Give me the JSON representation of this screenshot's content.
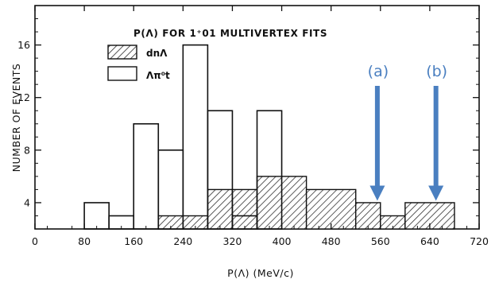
{
  "chart_data": {
    "type": "bar",
    "title": "P(Λ) FOR 1⁺01 MULTIVERTEX FITS",
    "xlabel": "P(Λ) (MeV/c)",
    "ylabel": "NUMBER OF EVENTS",
    "xlim": [
      0,
      720
    ],
    "ylim": [
      2,
      19
    ],
    "x_ticks": [
      0,
      80,
      160,
      240,
      320,
      400,
      480,
      560,
      640,
      720
    ],
    "y_ticks": [
      4,
      8,
      12,
      16
    ],
    "bin_width": 40,
    "grid": false,
    "legend_position": "top-left",
    "series": [
      {
        "name": "Λπ⁰t",
        "style": "open",
        "bins": [
          {
            "x0": 80,
            "x1": 120,
            "value": 4
          },
          {
            "x0": 120,
            "x1": 160,
            "value": 3
          },
          {
            "x0": 160,
            "x1": 200,
            "value": 10
          },
          {
            "x0": 200,
            "x1": 240,
            "value": 8
          },
          {
            "x0": 240,
            "x1": 280,
            "value": 16
          },
          {
            "x0": 280,
            "x1": 320,
            "value": 11
          },
          {
            "x0": 320,
            "x1": 360,
            "value": 3
          },
          {
            "x0": 360,
            "x1": 400,
            "value": 11
          }
        ]
      },
      {
        "name": "dnΛ",
        "style": "hatched",
        "bins": [
          {
            "x0": 200,
            "x1": 280,
            "value": 3
          },
          {
            "x0": 280,
            "x1": 320,
            "value": 5
          },
          {
            "x0": 320,
            "x1": 360,
            "value": 5
          },
          {
            "x0": 360,
            "x1": 440,
            "value": 6
          },
          {
            "x0": 440,
            "x1": 520,
            "value": 5
          },
          {
            "x0": 520,
            "x1": 560,
            "value": 4
          },
          {
            "x0": 560,
            "x1": 600,
            "value": 3
          },
          {
            "x0": 600,
            "x1": 680,
            "value": 4
          }
        ]
      }
    ],
    "annotations": [
      {
        "label": "(a)",
        "x": 555,
        "arrow_to_y": 4
      },
      {
        "label": "(b)",
        "x": 650,
        "arrow_to_y": 4
      }
    ],
    "colors": {
      "annotation": "#4a7fc0",
      "ink": "#111111"
    }
  }
}
